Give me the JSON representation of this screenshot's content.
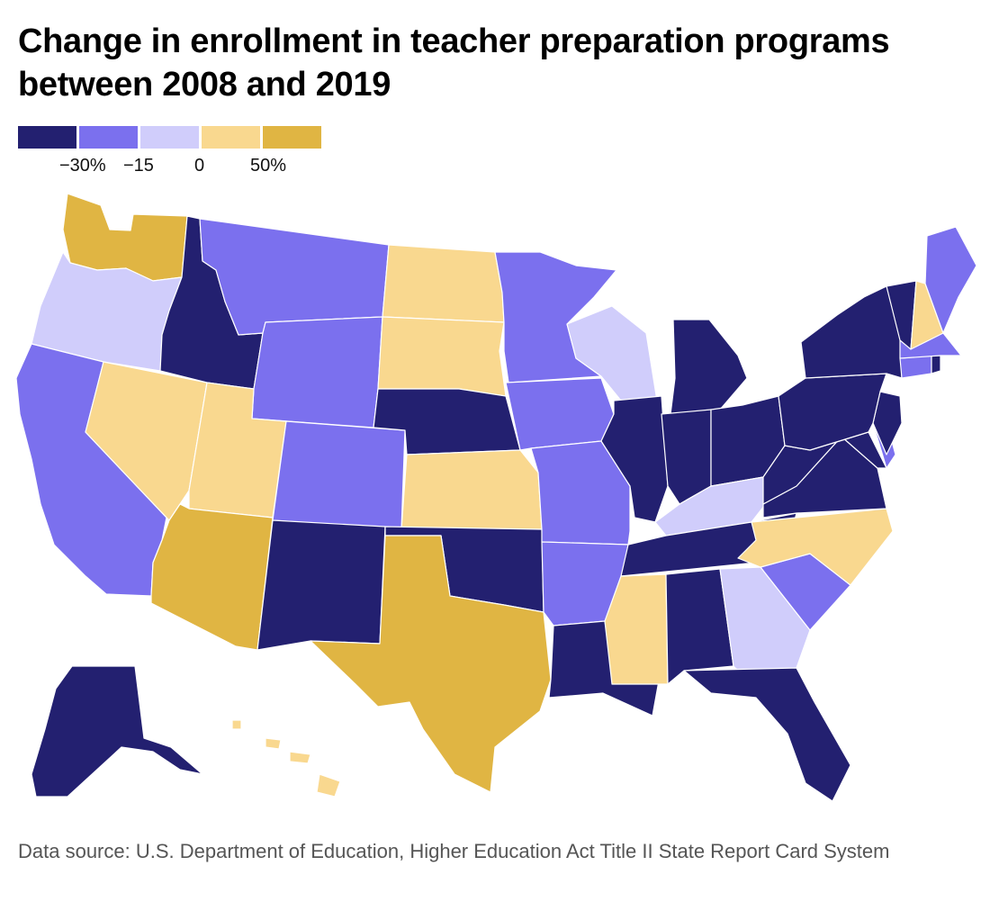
{
  "title": "Change in enrollment in teacher preparation programs between 2008 and 2019",
  "legend": {
    "colors": [
      "#232070",
      "#7b70ee",
      "#d0cdfb",
      "#f9d88f",
      "#e0b543"
    ],
    "ticks": [
      "−30%",
      "−15",
      "0",
      "50%"
    ]
  },
  "source": "Data source: U.S. Department of Education, Higher Education Act Title II State Report Card System",
  "map_data": {
    "type": "choropleth",
    "states": [
      {
        "id": "WA",
        "cls": 4
      },
      {
        "id": "OR",
        "cls": 2
      },
      {
        "id": "CA",
        "cls": 1
      },
      {
        "id": "NV",
        "cls": 3
      },
      {
        "id": "ID",
        "cls": 0
      },
      {
        "id": "MT",
        "cls": 1
      },
      {
        "id": "WY",
        "cls": 1
      },
      {
        "id": "UT",
        "cls": 3
      },
      {
        "id": "AZ",
        "cls": 4
      },
      {
        "id": "CO",
        "cls": 1
      },
      {
        "id": "NM",
        "cls": 0
      },
      {
        "id": "ND",
        "cls": 3
      },
      {
        "id": "SD",
        "cls": 3
      },
      {
        "id": "NE",
        "cls": 0
      },
      {
        "id": "KS",
        "cls": 3
      },
      {
        "id": "OK",
        "cls": 0
      },
      {
        "id": "TX",
        "cls": 4
      },
      {
        "id": "MN",
        "cls": 1
      },
      {
        "id": "IA",
        "cls": 1
      },
      {
        "id": "MO",
        "cls": 1
      },
      {
        "id": "AR",
        "cls": 1
      },
      {
        "id": "LA",
        "cls": 0
      },
      {
        "id": "WI",
        "cls": 2
      },
      {
        "id": "IL",
        "cls": 0
      },
      {
        "id": "MI",
        "cls": 0
      },
      {
        "id": "IN",
        "cls": 0
      },
      {
        "id": "OH",
        "cls": 0
      },
      {
        "id": "KY",
        "cls": 2
      },
      {
        "id": "TN",
        "cls": 0
      },
      {
        "id": "MS",
        "cls": 3
      },
      {
        "id": "AL",
        "cls": 0
      },
      {
        "id": "GA",
        "cls": 2
      },
      {
        "id": "FL",
        "cls": 0
      },
      {
        "id": "SC",
        "cls": 1
      },
      {
        "id": "NC",
        "cls": 3
      },
      {
        "id": "VA",
        "cls": 0
      },
      {
        "id": "WV",
        "cls": 0
      },
      {
        "id": "MD",
        "cls": 0
      },
      {
        "id": "DE",
        "cls": 1
      },
      {
        "id": "NJ",
        "cls": 0
      },
      {
        "id": "PA",
        "cls": 0
      },
      {
        "id": "NY",
        "cls": 0
      },
      {
        "id": "CT",
        "cls": 1
      },
      {
        "id": "RI",
        "cls": 0
      },
      {
        "id": "MA",
        "cls": 1
      },
      {
        "id": "VT",
        "cls": 0
      },
      {
        "id": "NH",
        "cls": 3
      },
      {
        "id": "ME",
        "cls": 1
      },
      {
        "id": "AK",
        "cls": 0
      },
      {
        "id": "HI",
        "cls": 3
      }
    ]
  }
}
